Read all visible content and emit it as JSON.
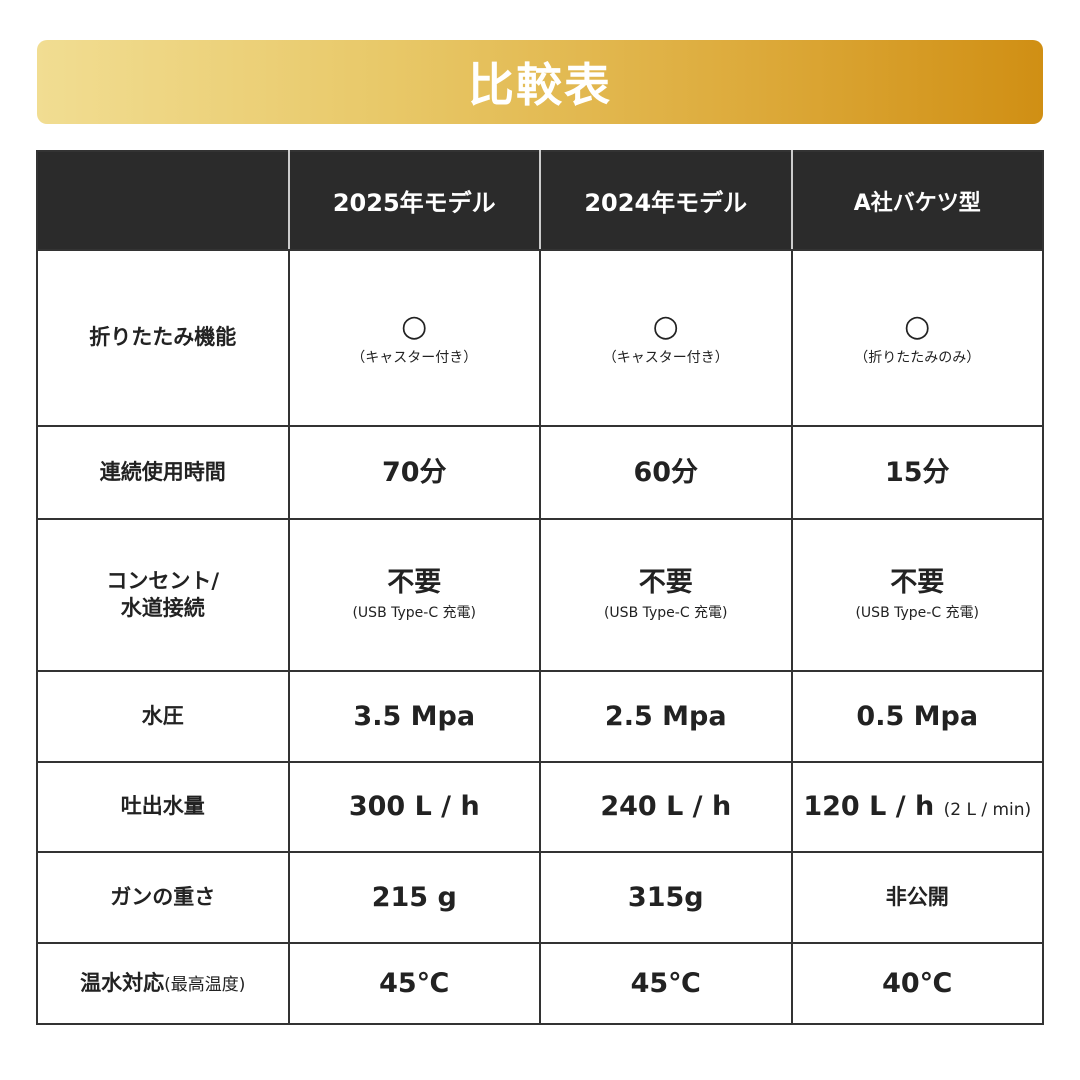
{
  "title": "比較表",
  "columns": [
    "",
    "2025年モデル",
    "2024年モデル",
    "A社バケツ型"
  ],
  "rows": [
    {
      "label": [
        "折りたたみ機能"
      ],
      "label_sub": "",
      "height": "large",
      "cells": [
        {
          "main": "○",
          "sub": "（キャスター付き）",
          "style": "circle"
        },
        {
          "main": "○",
          "sub": "（キャスター付き）",
          "style": "circle"
        },
        {
          "main": "○",
          "sub": "（折りたたみのみ）",
          "style": "circle"
        }
      ]
    },
    {
      "label": [
        "連続使用時間"
      ],
      "label_sub": "",
      "cells": [
        {
          "main": "70分"
        },
        {
          "main": "60分"
        },
        {
          "main": "15分"
        }
      ]
    },
    {
      "label": [
        "コンセント/",
        "水道接続"
      ],
      "label_sub": "",
      "cells": [
        {
          "main": "不要",
          "sub": "(USB Type-C 充電)"
        },
        {
          "main": "不要",
          "sub": "(USB Type-C 充電)"
        },
        {
          "main": "不要",
          "sub": "(USB Type-C 充電)"
        }
      ]
    },
    {
      "label": [
        "水圧"
      ],
      "label_sub": "",
      "cells": [
        {
          "main": "3.5 Mpa"
        },
        {
          "main": "2.5 Mpa"
        },
        {
          "main": "0.5 Mpa"
        }
      ]
    },
    {
      "label": [
        "吐出水量"
      ],
      "label_sub": "",
      "cells": [
        {
          "main": "300 L / h"
        },
        {
          "main": "240 L / h"
        },
        {
          "main": "120 L / h",
          "inline_sub": "(2 L / min)"
        }
      ]
    },
    {
      "label": [
        "ガンの重さ"
      ],
      "label_sub": "",
      "cells": [
        {
          "main": "215 g"
        },
        {
          "main": "315g"
        },
        {
          "main": "非公開",
          "style": "small"
        }
      ]
    },
    {
      "label": [
        "温水対応"
      ],
      "label_sub": "(最高温度)",
      "cells": [
        {
          "main": "45℃"
        },
        {
          "main": "45℃"
        },
        {
          "main": "40℃"
        }
      ]
    }
  ]
}
